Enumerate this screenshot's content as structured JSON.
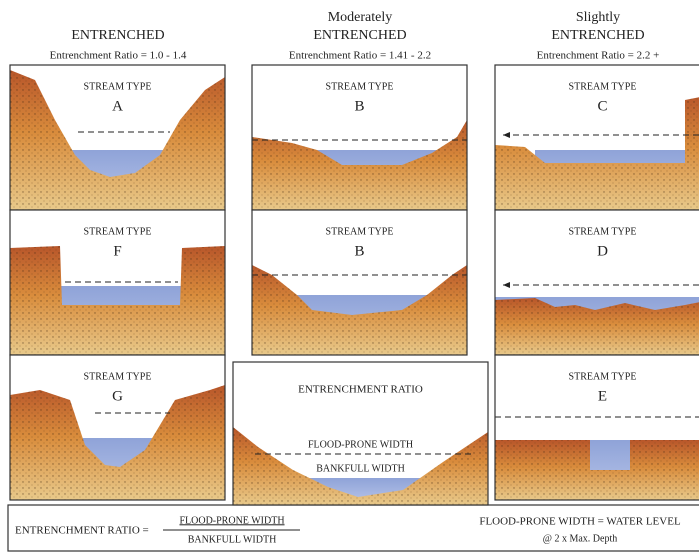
{
  "columns": [
    {
      "heading": [
        "ENTRENCHED"
      ],
      "ratio": "Entrenchment Ratio = 1.0 - 1.4",
      "panels": [
        {
          "label": "STREAM TYPE",
          "type": "A"
        },
        {
          "label": "STREAM TYPE",
          "type": "F"
        },
        {
          "label": "STREAM TYPE",
          "type": "G"
        }
      ]
    },
    {
      "heading": [
        "Moderately",
        "ENTRENCHED"
      ],
      "ratio": "Entrenchment Ratio = 1.41 - 2.2",
      "panels": [
        {
          "label": "STREAM TYPE",
          "type": "B"
        },
        {
          "label": "STREAM TYPE",
          "type": "B"
        }
      ]
    },
    {
      "heading": [
        "Slightly",
        "ENTRENCHED"
      ],
      "ratio": "Entrenchment Ratio = 2.2 +",
      "panels": [
        {
          "label": "STREAM TYPE",
          "type": "C"
        },
        {
          "label": "STREAM TYPE",
          "type": "D"
        },
        {
          "label": "STREAM TYPE",
          "type": "E"
        }
      ]
    }
  ],
  "ratio_panel": {
    "title": "ENTRENCHMENT RATIO",
    "flood_label": "FLOOD-PRONE WIDTH",
    "bankfull_label": "BANKFULL WIDTH"
  },
  "footer": {
    "formula_lhs": "ENTRENCHMENT RATIO =",
    "numerator": "FLOOD-PRONE WIDTH",
    "denominator": "BANKFULL WIDTH",
    "definition": [
      "FLOOD-PRONE WIDTH = WATER LEVEL",
      "@ 2 x Max. Depth"
    ]
  }
}
